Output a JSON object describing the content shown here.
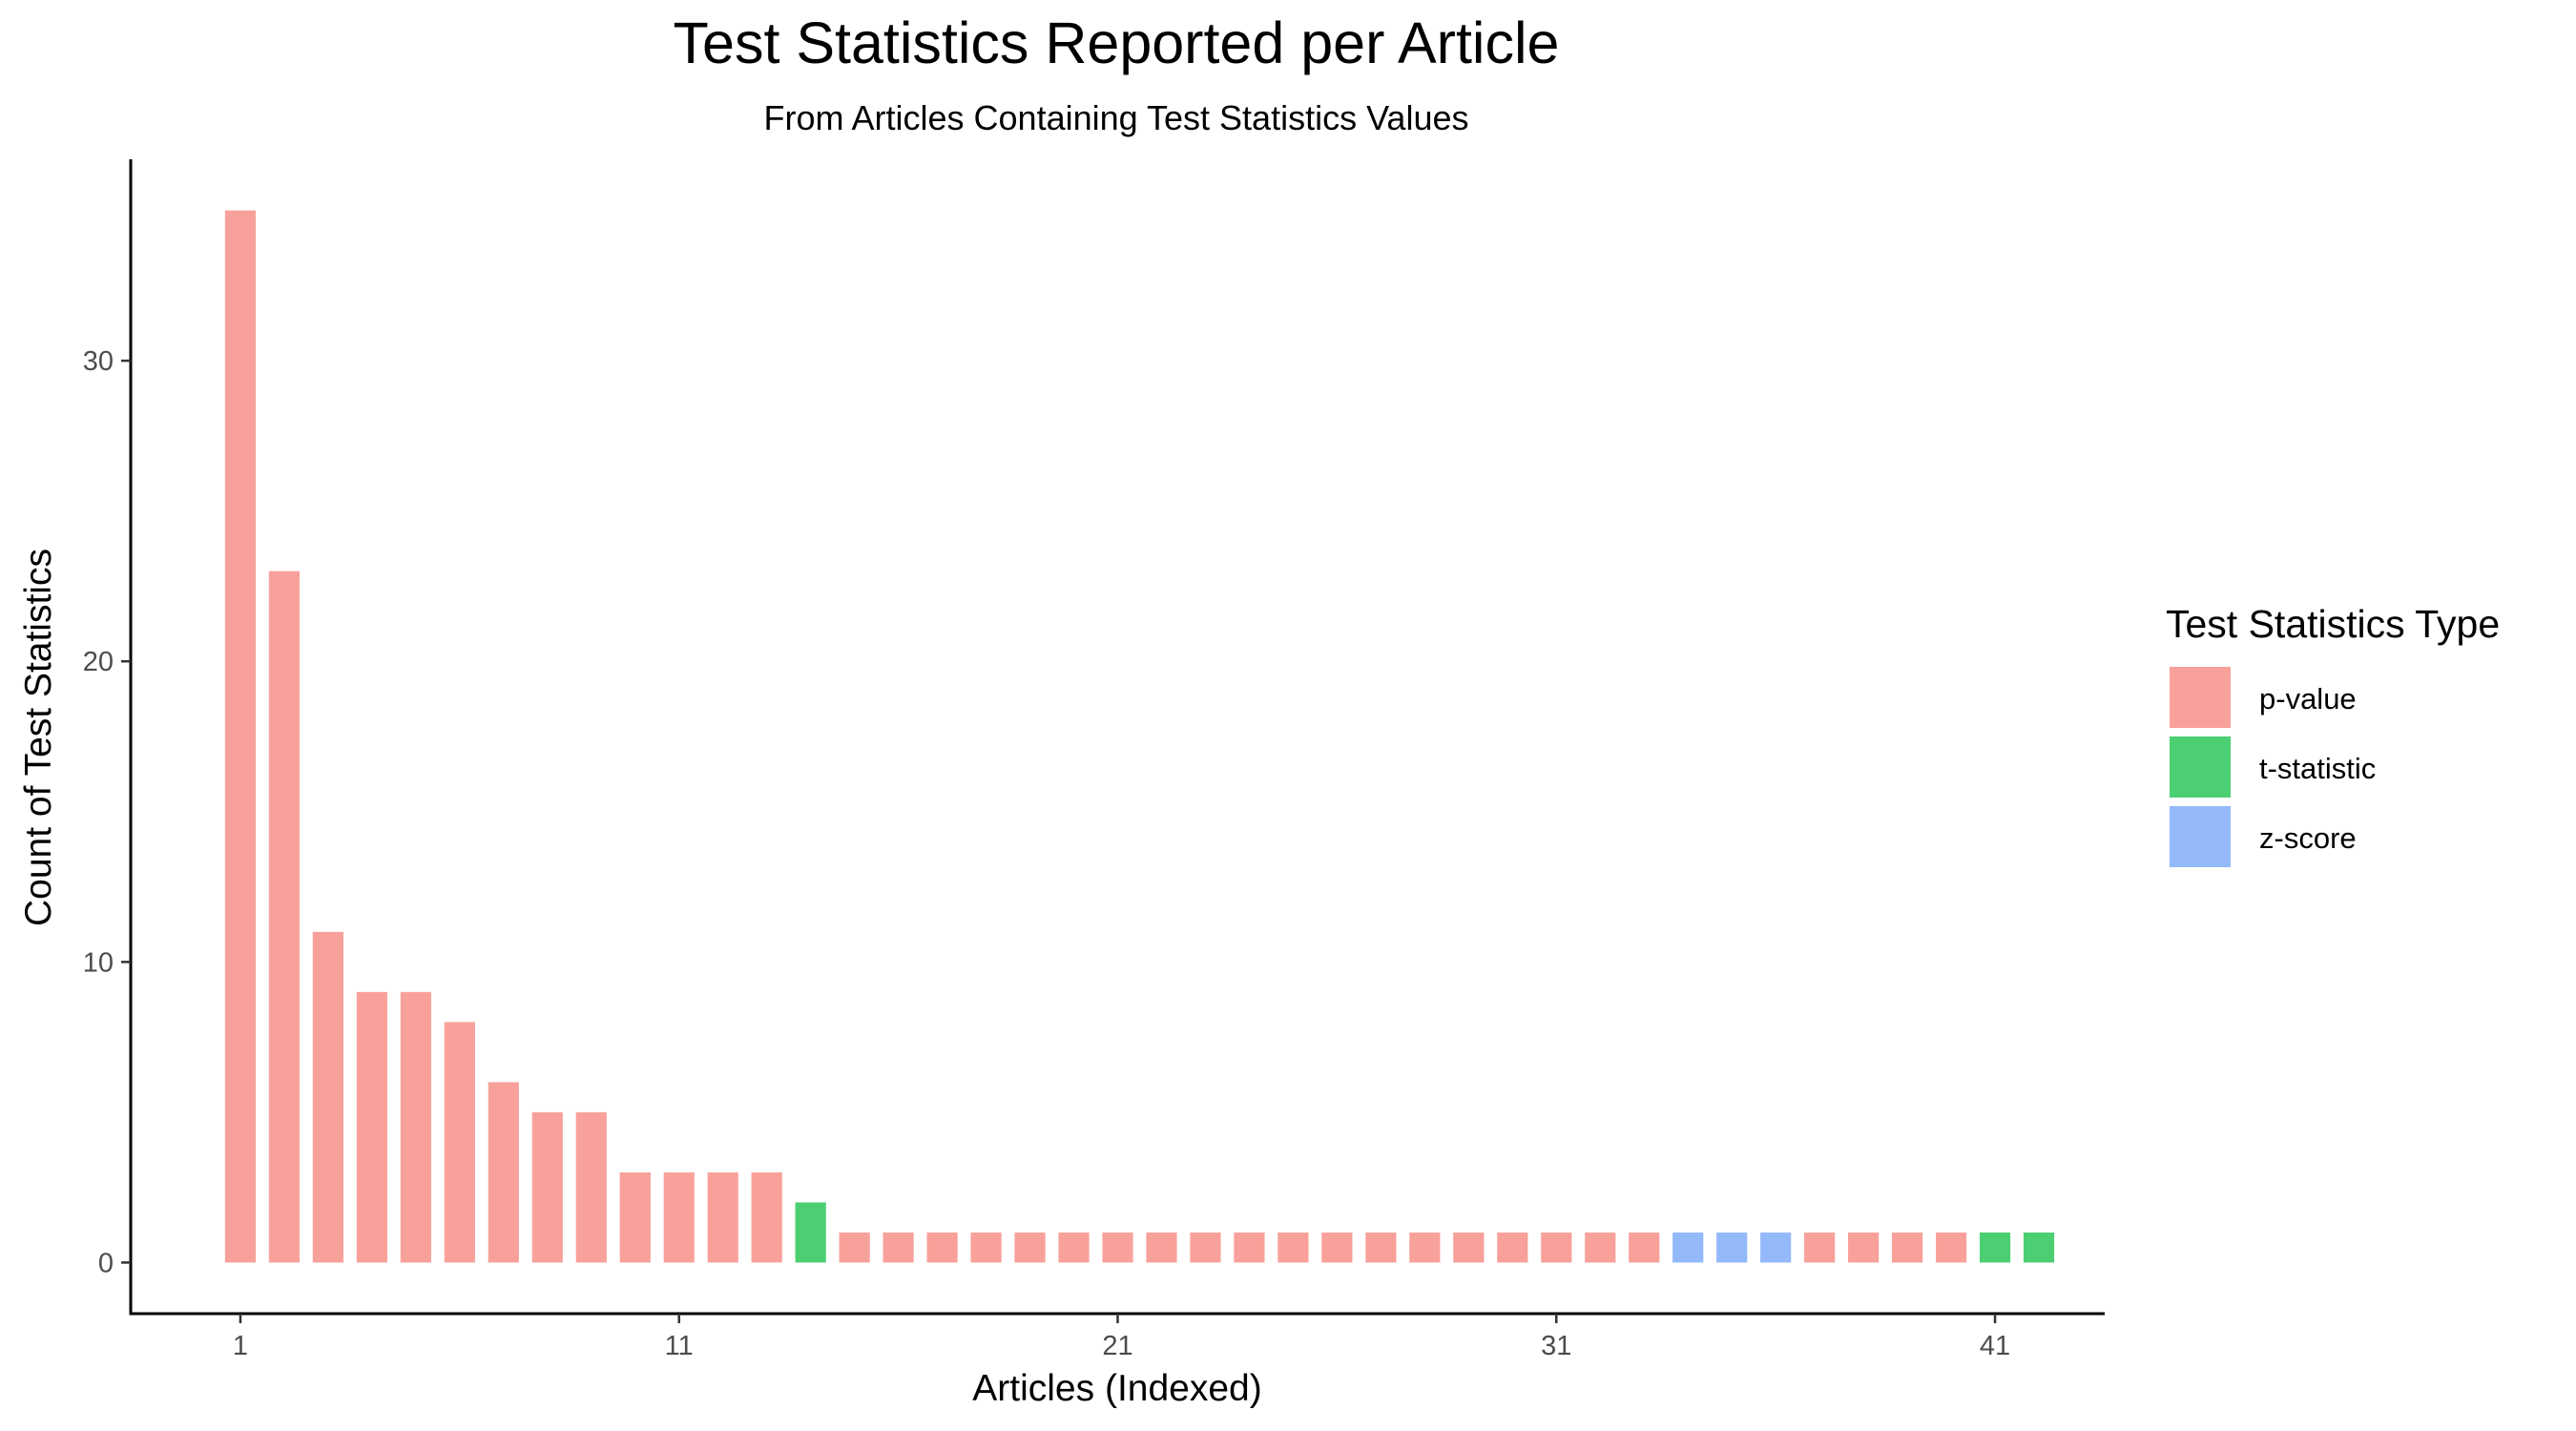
{
  "chart_data": {
    "type": "bar",
    "title": "Test Statistics Reported per Article",
    "subtitle": "From Articles Containing Test Statistics Values",
    "xlabel": "Articles (Indexed)",
    "ylabel": "Count of Test Statistics",
    "x_tick_labels": [
      "1",
      "11",
      "21",
      "31",
      "41"
    ],
    "x_ticks": [
      1,
      11,
      21,
      31,
      41
    ],
    "y_ticks": [
      0,
      10,
      20,
      30
    ],
    "y_tick_labels": [
      "0",
      "10",
      "20",
      "30"
    ],
    "ylim": [
      -1.7,
      36.7
    ],
    "xlim": [
      -1.5,
      43.5
    ],
    "grid": false,
    "legend": {
      "title": "Test Statistics Type",
      "position": "right",
      "items": [
        {
          "label": "p-value",
          "color": "#F8A19A"
        },
        {
          "label": "t-statistic",
          "color": "#4CCF72"
        },
        {
          "label": "z-score",
          "color": "#94B9FB"
        }
      ]
    },
    "x": [
      1,
      2,
      3,
      4,
      5,
      6,
      7,
      8,
      9,
      10,
      11,
      12,
      13,
      14,
      15,
      16,
      17,
      18,
      19,
      20,
      21,
      22,
      23,
      24,
      25,
      26,
      27,
      28,
      29,
      30,
      31,
      32,
      33,
      34,
      35,
      36,
      37,
      38,
      39,
      40,
      41,
      42
    ],
    "values": [
      35,
      23,
      11,
      9,
      9,
      8,
      6,
      5,
      5,
      3,
      3,
      3,
      3,
      2,
      1,
      1,
      1,
      1,
      1,
      1,
      1,
      1,
      1,
      1,
      1,
      1,
      1,
      1,
      1,
      1,
      1,
      1,
      1,
      1,
      1,
      1,
      1,
      1,
      1,
      1,
      1,
      1
    ],
    "types": [
      "p-value",
      "p-value",
      "p-value",
      "p-value",
      "p-value",
      "p-value",
      "p-value",
      "p-value",
      "p-value",
      "p-value",
      "p-value",
      "p-value",
      "p-value",
      "t-statistic",
      "p-value",
      "p-value",
      "p-value",
      "p-value",
      "p-value",
      "p-value",
      "p-value",
      "p-value",
      "p-value",
      "p-value",
      "p-value",
      "p-value",
      "p-value",
      "p-value",
      "p-value",
      "p-value",
      "p-value",
      "p-value",
      "p-value",
      "z-score",
      "z-score",
      "z-score",
      "p-value",
      "p-value",
      "p-value",
      "p-value",
      "t-statistic",
      "t-statistic"
    ]
  }
}
